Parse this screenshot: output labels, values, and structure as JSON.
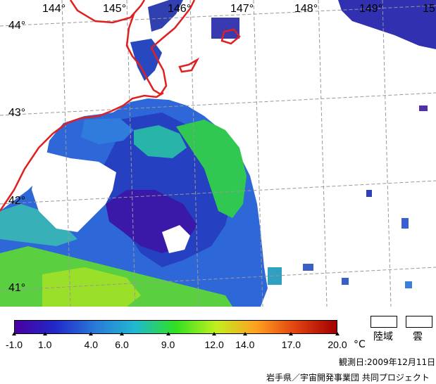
{
  "map": {
    "longitudes": [
      "144°",
      "145°",
      "146°",
      "147°",
      "148°",
      "149°",
      "15"
    ],
    "latitudes": [
      "44°",
      "43°",
      "42°",
      "41°"
    ]
  },
  "colorbar": {
    "ticks": [
      "-1.0",
      "1.0",
      "4.0",
      "6.0",
      "9.0",
      "12.0",
      "14.0",
      "17.0",
      "20.0"
    ],
    "unit": "°C",
    "colors": [
      "#4b00a0",
      "#2028c8",
      "#2a7ad8",
      "#20b8d0",
      "#30e020",
      "#c0f020",
      "#ffa020",
      "#e04010",
      "#a00000"
    ]
  },
  "legend": {
    "land": "陸域",
    "cloud": "雲"
  },
  "footer": {
    "observation_date": "観測日:2009年12月11日",
    "credit": "岩手県／宇宙開発事業団 共同プロジェクト"
  }
}
